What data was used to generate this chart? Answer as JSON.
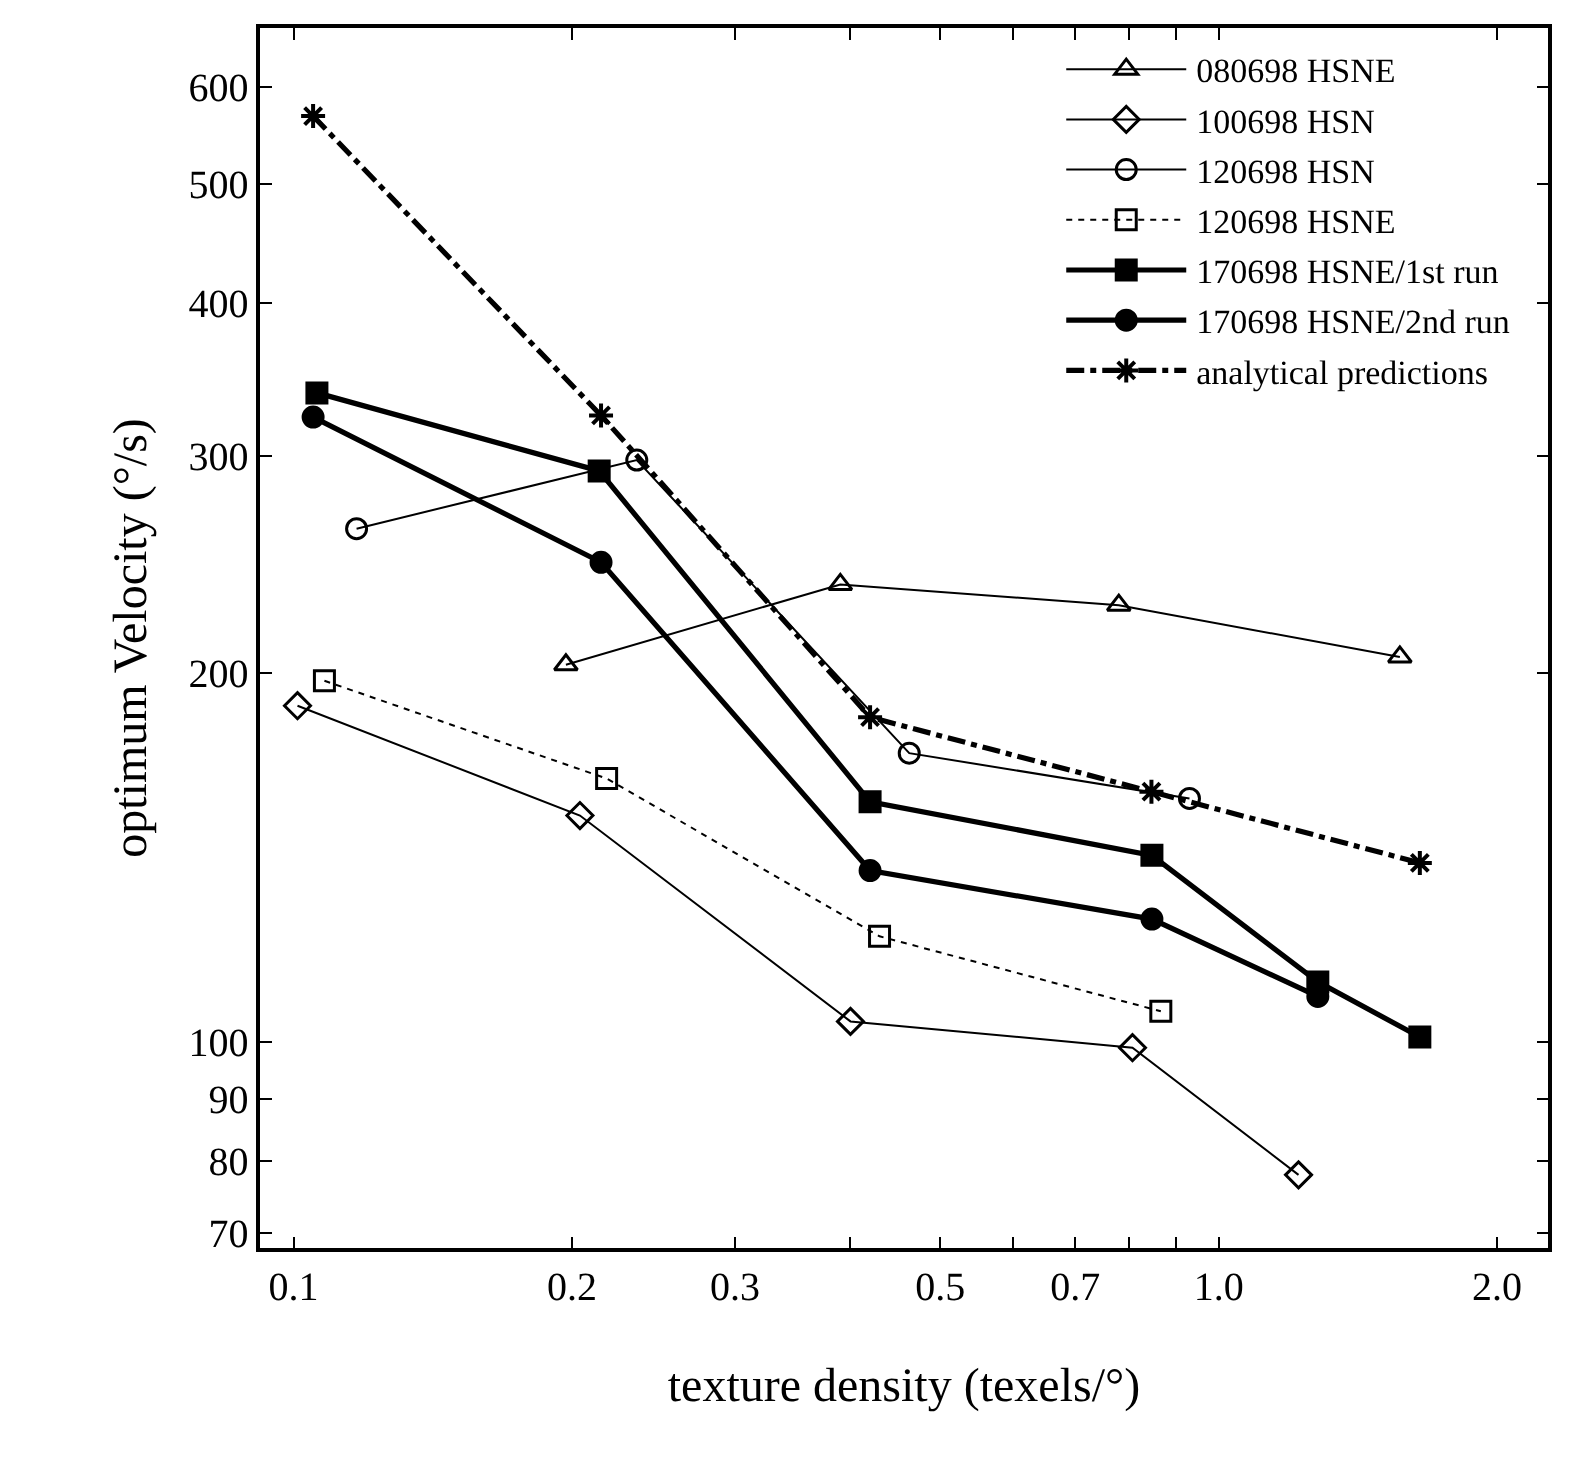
{
  "chart_data": {
    "type": "line",
    "xlabel": "texture density (texels/°)",
    "ylabel": "optimum Velocity (°/s)",
    "log": "xy",
    "legend": "top right",
    "xlim": [
      0.092,
      2.27
    ],
    "ylim": [
      68,
      670
    ],
    "xticks": [
      0.1,
      0.2,
      0.3,
      {
        "value": 0.4,
        "label": null
      },
      0.5,
      {
        "value": 0.6,
        "label": null
      },
      0.7,
      {
        "value": 0.8,
        "label": null
      },
      {
        "value": 0.9,
        "label": null
      },
      {
        "value": 1.0,
        "label": "1.0"
      },
      {
        "value": 2.0,
        "label": "2.0"
      }
    ],
    "yticks": [
      70,
      80,
      90,
      100,
      200,
      300,
      400,
      500,
      600
    ],
    "series": [
      {
        "name": "080698 HSNE",
        "color": "#000000",
        "marker": "triangle-open",
        "line_style": "solid",
        "x": [
          0.197,
          0.39,
          0.78,
          1.57
        ],
        "values": [
          203,
          236,
          227,
          206
        ]
      },
      {
        "name": "100698 HSN",
        "color": "#000000",
        "marker": "diamond-open",
        "line_style": "solid",
        "x": [
          0.101,
          0.204,
          0.4,
          0.807,
          1.22
        ],
        "values": [
          188,
          153,
          104,
          99,
          78
        ]
      },
      {
        "name": "120698 HSN",
        "color": "#000000",
        "marker": "circle-open",
        "line_style": "solid",
        "x": [
          0.117,
          0.235,
          0.463,
          0.93
        ],
        "values": [
          262,
          298,
          172,
          158
        ]
      },
      {
        "name": "120698 HSNE",
        "color": "#000000",
        "marker": "square-open",
        "line_style": "dotted",
        "x": [
          0.108,
          0.218,
          0.43,
          0.866
        ],
        "values": [
          197,
          164,
          122,
          106
        ]
      },
      {
        "name": "170698 HSNE/1st run",
        "color": "#000000",
        "marker": "square",
        "line_style": "solid",
        "x": [
          0.106,
          0.214,
          0.42,
          0.847,
          1.28,
          1.65
        ],
        "values": [
          338,
          292,
          157,
          142,
          112,
          101
        ]
      },
      {
        "name": "170698 HSNE/2nd run",
        "color": "#000000",
        "marker": "circle",
        "line_style": "solid",
        "x": [
          0.105,
          0.215,
          0.42,
          0.847,
          1.28
        ],
        "values": [
          323,
          246,
          138,
          126,
          109
        ]
      },
      {
        "name": "analytical predictions",
        "color": "#000000",
        "marker": "cross",
        "line_style": "dashdot",
        "x": [
          0.105,
          0.215,
          0.42,
          0.846,
          1.65
        ],
        "values": [
          568,
          324,
          184,
          160,
          140
        ]
      }
    ]
  }
}
